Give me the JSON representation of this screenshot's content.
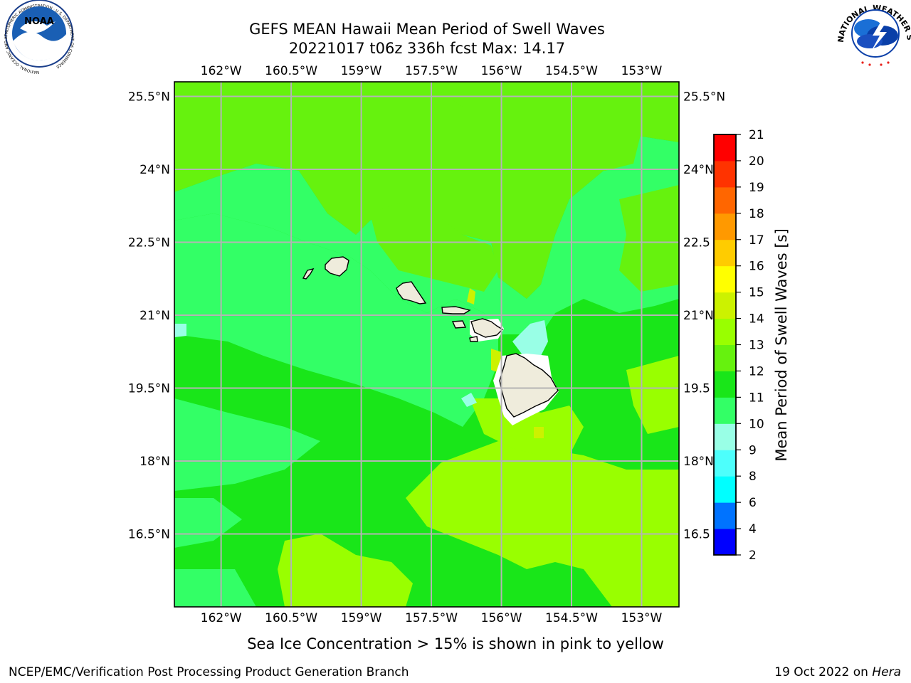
{
  "title": {
    "line1": "GEFS MEAN Hawaii Mean Period of Swell Waves",
    "line2": "20221017 t06z 336h fcst   Max: 14.17"
  },
  "logos": {
    "left": "NOAA",
    "left_ring": "NATIONAL OCEANIC AND ATMOSPHERIC ADMINISTRATION · U.S. DEPARTMENT OF COMMERCE",
    "right_ring": "NATIONAL WEATHER SERVICE"
  },
  "map": {
    "lon_range": [
      -163,
      -152.2
    ],
    "lat_range": [
      15.0,
      25.8
    ],
    "lon_ticks": [
      {
        "value": -162,
        "label": "162°W"
      },
      {
        "value": -160.5,
        "label": "160.5°W"
      },
      {
        "value": -159,
        "label": "159°W"
      },
      {
        "value": -157.5,
        "label": "157.5°W"
      },
      {
        "value": -156,
        "label": "156°W"
      },
      {
        "value": -154.5,
        "label": "154.5°W"
      },
      {
        "value": -153,
        "label": "153°W"
      }
    ],
    "lat_ticks_left": [
      {
        "value": 25.5,
        "label": "25.5°N"
      },
      {
        "value": 24,
        "label": "24°N"
      },
      {
        "value": 22.5,
        "label": "22.5°N"
      },
      {
        "value": 21,
        "label": "21°N"
      },
      {
        "value": 19.5,
        "label": "19.5°N"
      },
      {
        "value": 18,
        "label": "18°N"
      },
      {
        "value": 16.5,
        "label": "16.5°N"
      }
    ],
    "lat_ticks_right": [
      {
        "value": 25.5,
        "label": "25.5°N"
      },
      {
        "value": 24,
        "label": "24°N"
      },
      {
        "value": 22.5,
        "label": "22.5"
      },
      {
        "value": 21,
        "label": "21°N"
      },
      {
        "value": 19.5,
        "label": "19.5"
      },
      {
        "value": 18,
        "label": "18°N"
      },
      {
        "value": 16.5,
        "label": "16.5"
      }
    ],
    "grid": true,
    "land_color": "#efecdc",
    "missing_color": "#ffffff",
    "grid_color": "#b4b4b4"
  },
  "colorbar": {
    "label": "Mean Period of Swell Waves [s]",
    "levels": [
      2,
      4,
      6,
      8,
      9,
      10,
      11,
      12,
      13,
      14,
      15,
      16,
      17,
      18,
      19,
      20,
      21
    ],
    "colors": [
      "#0000ff",
      "#0073ff",
      "#00ffff",
      "#4dfffc",
      "#99ffe6",
      "#33ff66",
      "#19e619",
      "#66f20e",
      "#99ff00",
      "#ccf200",
      "#ffff00",
      "#ffcc00",
      "#ff9900",
      "#ff6600",
      "#ff3300",
      "#ff0000"
    ]
  },
  "footer": {
    "sea_ice_note": "Sea Ice Concentration > 15% is shown in pink to yellow",
    "credit": "NCEP/EMC/Verification Post Processing Product Generation Branch",
    "date": "19 Oct 2022 on ",
    "machine": "Hera"
  }
}
